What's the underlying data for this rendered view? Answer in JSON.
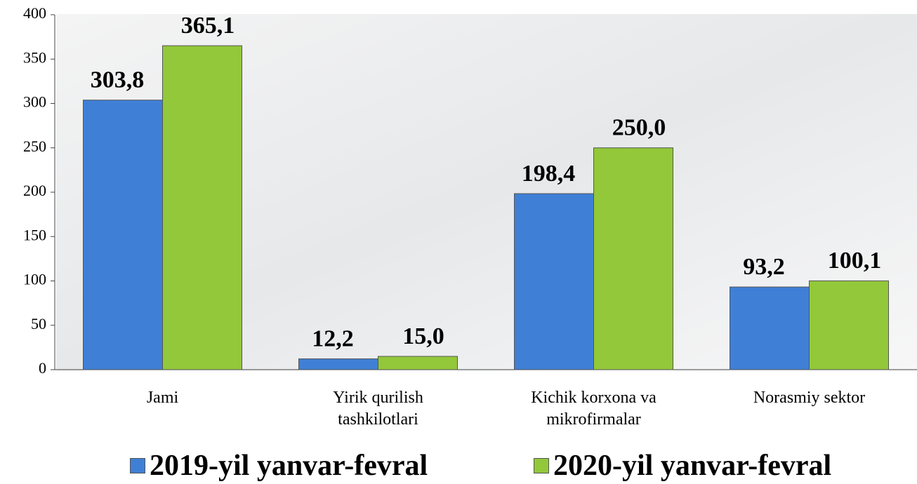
{
  "chart_data": {
    "type": "bar",
    "categories": [
      "Jami",
      "Yirik qurilish tashkilotlari",
      "Kichik korxona va mikrofirmalar",
      "Norasmiy sektor"
    ],
    "series": [
      {
        "name": "2019-yil yanvar-fevral",
        "color": "#3f7fd6",
        "values": [
          303.8,
          12.2,
          198.4,
          93.2
        ],
        "value_labels": [
          "303,8",
          "12,2",
          "198,4",
          "93,2"
        ]
      },
      {
        "name": "2020-yil yanvar-fevral",
        "color": "#92c83a",
        "values": [
          365.1,
          15.0,
          250.0,
          100.1
        ],
        "value_labels": [
          "365,1",
          "15,0",
          "250,0",
          "100,1"
        ]
      }
    ],
    "ylim": [
      0,
      400
    ],
    "yticks": [
      0,
      50,
      100,
      150,
      200,
      250,
      300,
      350,
      400
    ],
    "grid": false,
    "legend": "bottom"
  }
}
